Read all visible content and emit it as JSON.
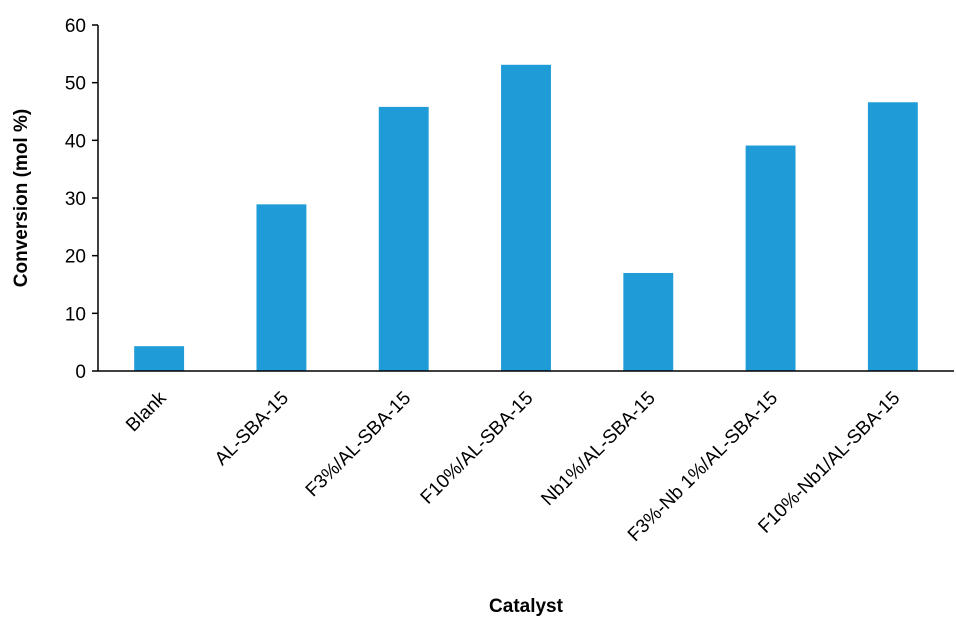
{
  "chart_data": {
    "type": "bar",
    "categories": [
      "Blank",
      "AL-SBA-15",
      "F3%/AL-SBA-15",
      "F10%/AL-SBA-15",
      "Nb1%/AL-SBA-15",
      "F3%-Nb 1%/AL-SBA-15",
      "F10%-Nb1/AL-SBA-15"
    ],
    "values": [
      4.3,
      28.9,
      45.8,
      53.1,
      17.0,
      39.1,
      46.6
    ],
    "xlabel": "Catalyst",
    "ylabel": "Conversion (mol %)",
    "ylim": [
      0,
      60
    ],
    "yticks": [
      0,
      10,
      20,
      30,
      40,
      50,
      60
    ],
    "grid": false,
    "bar_color": "#1f9bd7",
    "axis_color": "#000000"
  }
}
